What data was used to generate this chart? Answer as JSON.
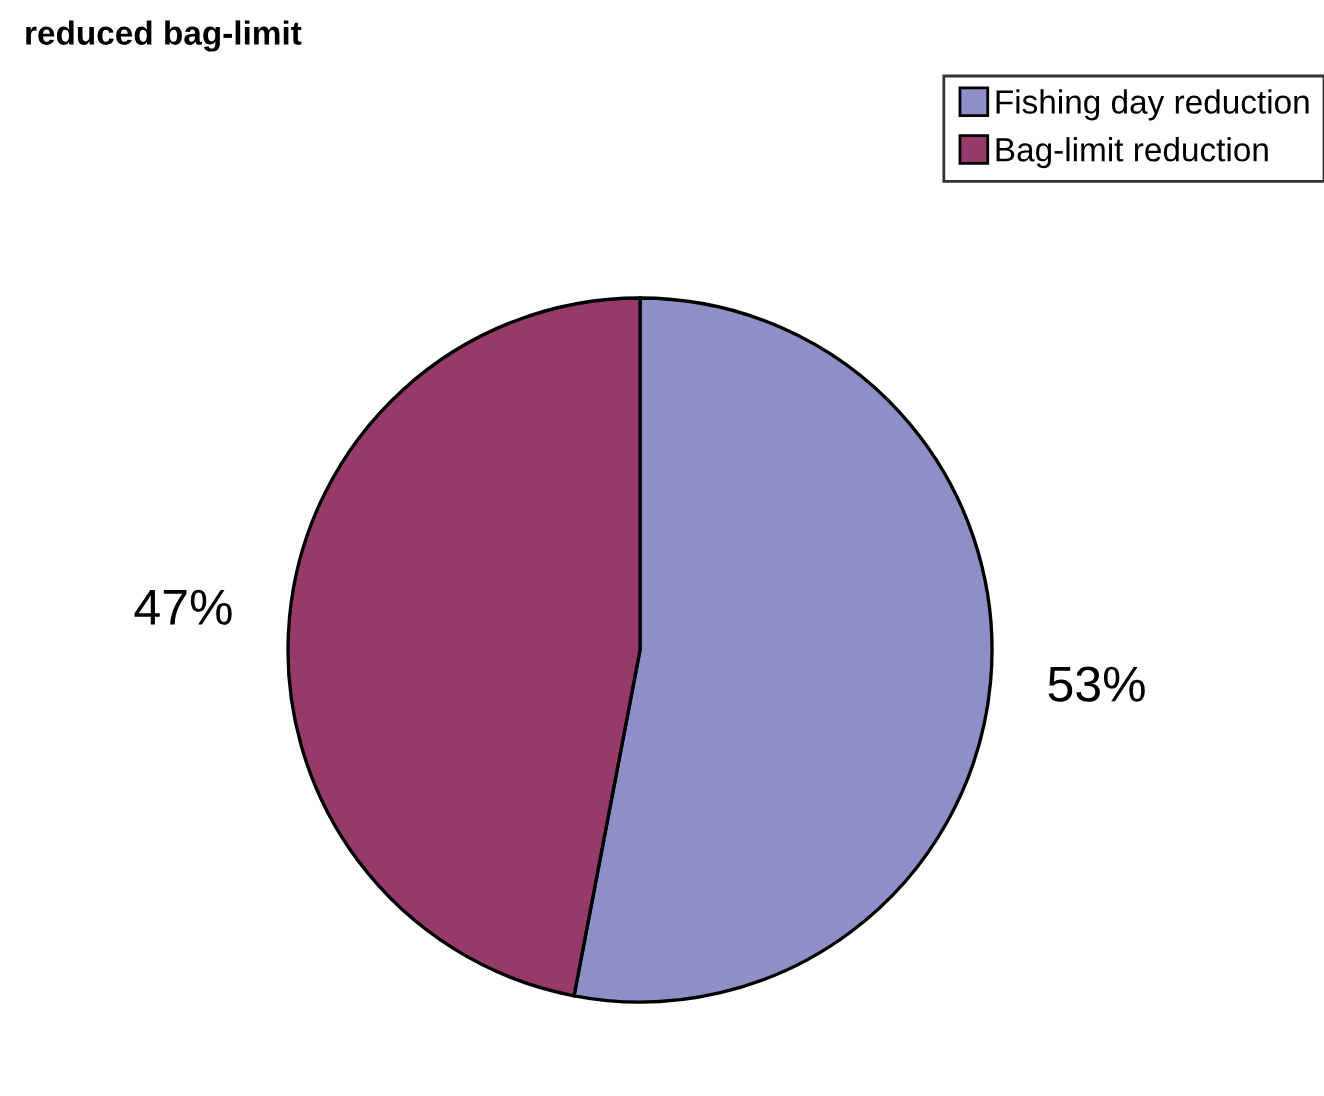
{
  "chart_data": {
    "type": "pie",
    "title": "reduced bag-limit",
    "categories": [
      "Fishing day reduction",
      "Bag-limit reduction"
    ],
    "values": [
      53,
      47
    ],
    "colors": [
      "#8f8fc8",
      "#953a6a"
    ],
    "value_labels": [
      "53%",
      "47%"
    ],
    "legend": "top right"
  }
}
